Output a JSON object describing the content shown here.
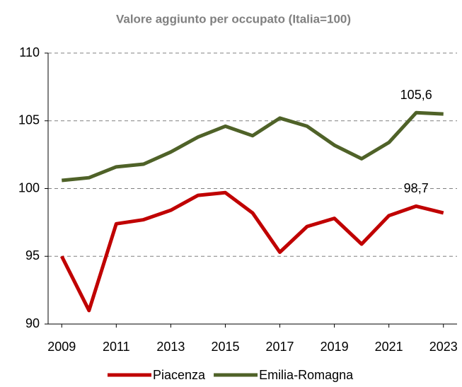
{
  "chart_data": {
    "type": "line",
    "title": "Valore  aggiunto per occupato  (Italia=100)",
    "x": [
      2009,
      2010,
      2011,
      2012,
      2013,
      2014,
      2015,
      2016,
      2017,
      2018,
      2019,
      2020,
      2021,
      2022,
      2023
    ],
    "series": [
      {
        "name": "Piacenza",
        "color": "#c00000",
        "values": [
          95.0,
          91.0,
          97.4,
          97.7,
          98.4,
          99.5,
          99.7,
          98.2,
          95.3,
          97.2,
          97.8,
          95.9,
          98.0,
          98.7,
          98.2
        ],
        "value_labels": [
          null,
          null,
          null,
          null,
          null,
          null,
          null,
          null,
          null,
          null,
          null,
          null,
          null,
          "98,7",
          null
        ]
      },
      {
        "name": "Emilia-Romagna",
        "color": "#4f6228",
        "values": [
          100.6,
          100.8,
          101.6,
          101.8,
          102.7,
          103.8,
          104.6,
          103.9,
          105.2,
          104.6,
          103.2,
          102.2,
          103.4,
          105.6,
          105.5
        ],
        "value_labels": [
          null,
          null,
          null,
          null,
          null,
          null,
          null,
          null,
          null,
          null,
          null,
          null,
          null,
          "105,6",
          null
        ]
      }
    ],
    "xlim": [
      2008.5,
      2023.5
    ],
    "xticks": [
      2009,
      2011,
      2013,
      2015,
      2017,
      2019,
      2021,
      2023
    ],
    "ylim": [
      90,
      110
    ],
    "yticks": [
      90,
      95,
      100,
      105,
      110
    ],
    "grid": true,
    "legend": "bottom"
  }
}
